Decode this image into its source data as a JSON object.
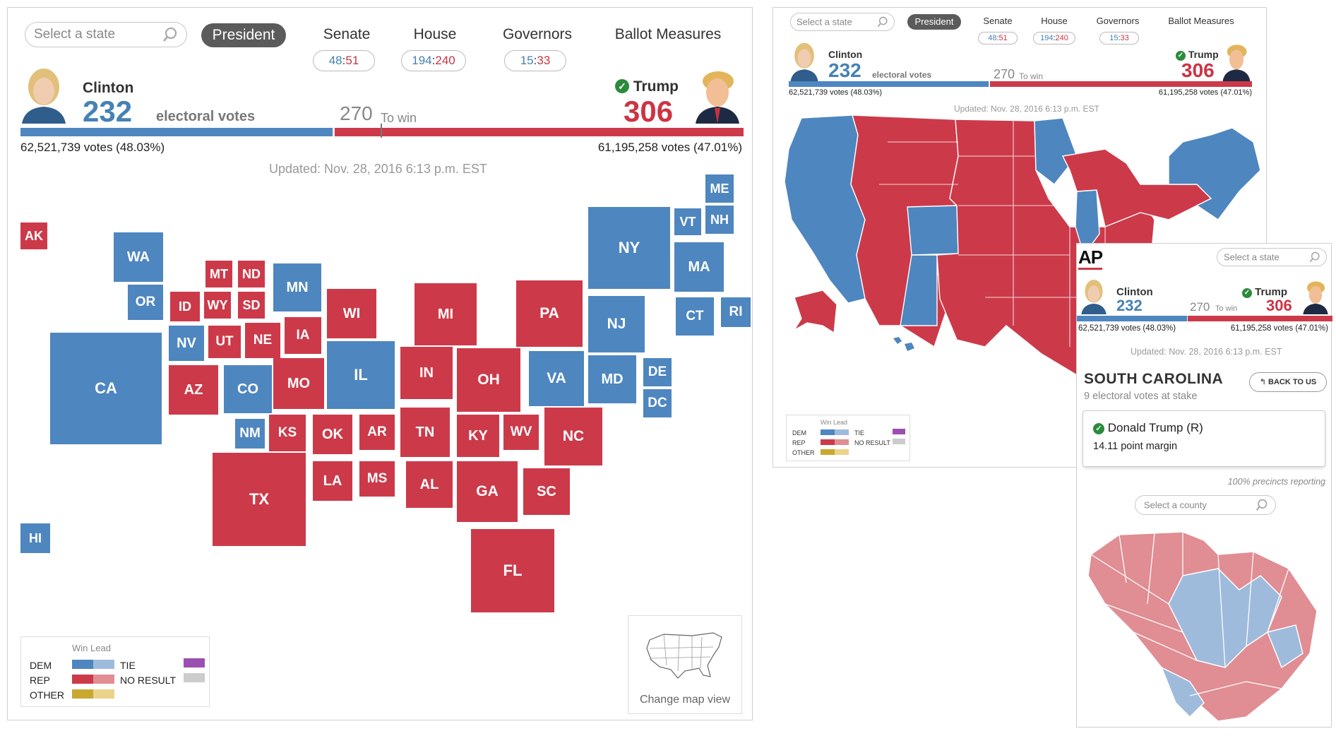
{
  "colors": {
    "dem": "#4e86bf",
    "rep": "#cc3a4a",
    "dem_lead": "#9fbbdc",
    "rep_lead": "#e08d93",
    "other": "#c9a830",
    "other_lead": "#ead38a",
    "tie": "#9b4fb0",
    "no_result": "#cccccc",
    "win_check": "#2a8b3c"
  },
  "search": {
    "placeholder": "Select a state"
  },
  "tabs": {
    "president": "President",
    "senate": "Senate",
    "house": "House",
    "governors": "Governors",
    "ballot": "Ballot Measures"
  },
  "scores": {
    "senate": {
      "dem": "48",
      "sep": ":",
      "rep": "51"
    },
    "house": {
      "dem": "194",
      "sep": ":",
      "rep": "240"
    },
    "governors": {
      "dem": "15",
      "sep": ":",
      "rep": "33"
    }
  },
  "candidates": {
    "clinton": {
      "name": "Clinton",
      "ev": "232",
      "ev_label": "electoral votes",
      "votes": "62,521,739 votes (48.03%)"
    },
    "trump": {
      "name": "Trump",
      "ev": "306",
      "votes": "61,195,258 votes (47.01%)"
    },
    "to_win_num": "270",
    "to_win_label": "To win",
    "progress": {
      "dem_ev": 232,
      "rep_ev": 306,
      "total_ev": 538
    }
  },
  "updated": "Updated: Nov. 28, 2016 6:13 p.m. EST",
  "tiles": [
    {
      "s": "AK",
      "p": "R"
    },
    {
      "s": "WA",
      "p": "D"
    },
    {
      "s": "OR",
      "p": "D"
    },
    {
      "s": "CA",
      "p": "D"
    },
    {
      "s": "HI",
      "p": "D"
    },
    {
      "s": "MT",
      "p": "R"
    },
    {
      "s": "ND",
      "p": "R"
    },
    {
      "s": "ID",
      "p": "R"
    },
    {
      "s": "WY",
      "p": "R"
    },
    {
      "s": "SD",
      "p": "R"
    },
    {
      "s": "NV",
      "p": "D"
    },
    {
      "s": "UT",
      "p": "R"
    },
    {
      "s": "NE",
      "p": "R"
    },
    {
      "s": "IA",
      "p": "R"
    },
    {
      "s": "MN",
      "p": "D"
    },
    {
      "s": "AZ",
      "p": "R"
    },
    {
      "s": "CO",
      "p": "D"
    },
    {
      "s": "MO",
      "p": "R"
    },
    {
      "s": "NM",
      "p": "D"
    },
    {
      "s": "KS",
      "p": "R"
    },
    {
      "s": "OK",
      "p": "R"
    },
    {
      "s": "AR",
      "p": "R"
    },
    {
      "s": "TX",
      "p": "R"
    },
    {
      "s": "LA",
      "p": "R"
    },
    {
      "s": "MS",
      "p": "R"
    },
    {
      "s": "WI",
      "p": "R"
    },
    {
      "s": "IL",
      "p": "D"
    },
    {
      "s": "MI",
      "p": "R"
    },
    {
      "s": "IN",
      "p": "R"
    },
    {
      "s": "OH",
      "p": "R"
    },
    {
      "s": "TN",
      "p": "R"
    },
    {
      "s": "KY",
      "p": "R"
    },
    {
      "s": "WV",
      "p": "R"
    },
    {
      "s": "AL",
      "p": "R"
    },
    {
      "s": "GA",
      "p": "R"
    },
    {
      "s": "FL",
      "p": "R"
    },
    {
      "s": "SC",
      "p": "R"
    },
    {
      "s": "NC",
      "p": "R"
    },
    {
      "s": "VA",
      "p": "D"
    },
    {
      "s": "PA",
      "p": "R"
    },
    {
      "s": "NY",
      "p": "D"
    },
    {
      "s": "NJ",
      "p": "D"
    },
    {
      "s": "MD",
      "p": "D"
    },
    {
      "s": "DE",
      "p": "D"
    },
    {
      "s": "DC",
      "p": "D"
    },
    {
      "s": "VT",
      "p": "D"
    },
    {
      "s": "NH",
      "p": "D"
    },
    {
      "s": "ME",
      "p": "D"
    },
    {
      "s": "MA",
      "p": "D"
    },
    {
      "s": "CT",
      "p": "D"
    },
    {
      "s": "RI",
      "p": "D"
    }
  ],
  "legend": {
    "header": "Win Lead",
    "dem": "DEM",
    "rep": "REP",
    "other": "OTHER",
    "tie": "TIE",
    "no_result": "NO RESULT"
  },
  "change_view": "Change map view",
  "detail": {
    "logo": "AP",
    "state": "SOUTH CAROLINA",
    "stake": "9 electoral votes at stake",
    "back": "BACK TO US",
    "winner": "Donald Trump (R)",
    "margin": "14.11 point margin",
    "precincts": "100% precincts reporting",
    "county_placeholder": "Select a county"
  }
}
